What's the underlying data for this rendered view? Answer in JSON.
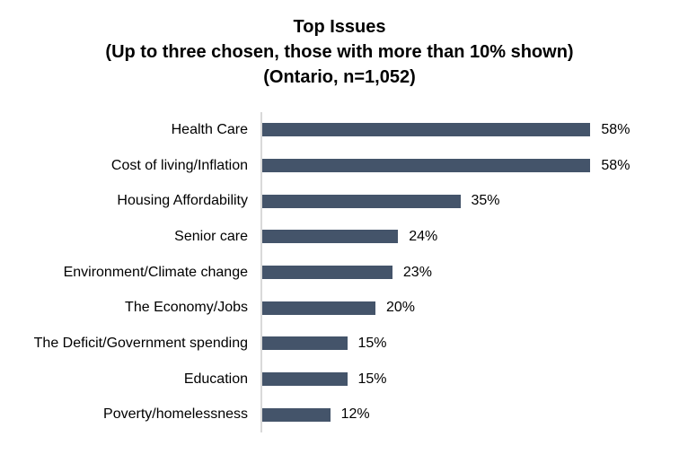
{
  "title": {
    "line1": "Top Issues",
    "line2": "(Up to three chosen, those with more than 10% shown)",
    "line3": "(Ontario, n=1,052)"
  },
  "chart_data": {
    "type": "bar",
    "orientation": "horizontal",
    "title": "Top Issues (Up to three chosen, those with more than 10% shown) (Ontario, n=1,052)",
    "categories": [
      "Health Care",
      "Cost of living/Inflation",
      "Housing Affordability",
      "Senior care",
      "Environment/Climate change",
      "The Economy/Jobs",
      "The Deficit/Government spending",
      "Education",
      "Poverty/homelessness"
    ],
    "values": [
      58,
      58,
      35,
      24,
      23,
      20,
      15,
      15,
      12
    ],
    "value_labels": [
      "58%",
      "58%",
      "35%",
      "24%",
      "23%",
      "20%",
      "15%",
      "15%",
      "12%"
    ],
    "xlabel": "",
    "ylabel": "",
    "xlim": [
      0,
      60
    ],
    "grid": false,
    "legend": false,
    "bar_color": "#44546A",
    "axis_line_color": "#D9D9D9",
    "text_color": "#000000",
    "background_color": "#FFFFFF"
  }
}
